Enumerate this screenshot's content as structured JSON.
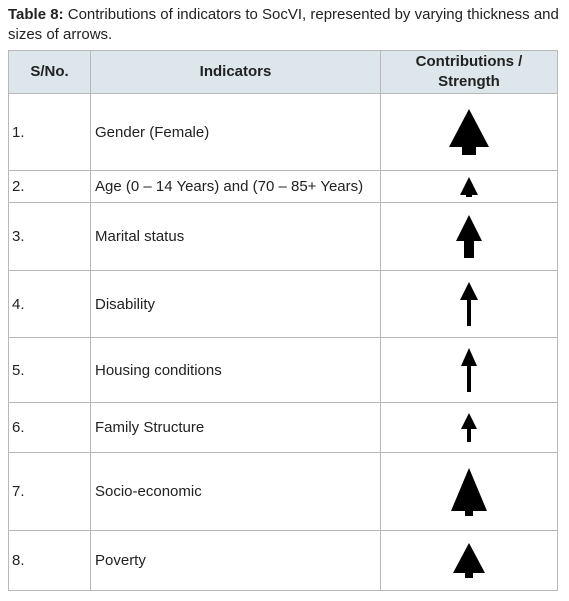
{
  "caption": {
    "label": "Table 8:",
    "text": "Contributions of indicators to SocVI, represented by varying thickness and sizes of arrows."
  },
  "table": {
    "header": [
      "S/No.",
      "Indicators",
      "Contributions / Strength"
    ],
    "rows": [
      [
        "1.",
        "Gender (Female)"
      ],
      [
        "2.",
        "Age (0 – 14 Years) and (70 – 85+ Years)"
      ],
      [
        "3.",
        "Marital status"
      ],
      [
        "4.",
        "Disability"
      ],
      [
        "5.",
        "Housing conditions"
      ],
      [
        "6.",
        "Family Structure"
      ],
      [
        "7.",
        "Socio-economic"
      ],
      [
        "8.",
        "Poverty"
      ]
    ]
  }
}
